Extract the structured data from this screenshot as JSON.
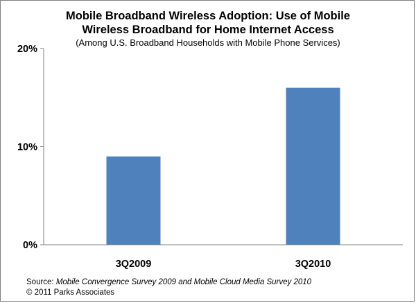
{
  "chart_data": {
    "type": "bar",
    "title_line1": "Mobile Broadband Wireless Adoption: Use of Mobile",
    "title_line2": "Wireless Broadband for Home Internet Access",
    "subtitle": "(Among U.S. Broadband Households with Mobile Phone Services)",
    "categories": [
      "3Q2009",
      "3Q2010"
    ],
    "values": [
      9,
      16
    ],
    "ylim": [
      0,
      20
    ],
    "yticks": [
      0,
      10,
      20
    ],
    "ytick_labels": [
      "0%",
      "10%",
      "20%"
    ],
    "xlabel": "",
    "ylabel": "",
    "grid": false,
    "legend": "none",
    "bar_color": "#4f81bd"
  },
  "footer": {
    "source_prefix": "Source: ",
    "source_italic": "Mobile Convergence Survey 2009 and Mobile Cloud Media Survey 2010",
    "copyright": "© 2011 Parks Associates"
  }
}
